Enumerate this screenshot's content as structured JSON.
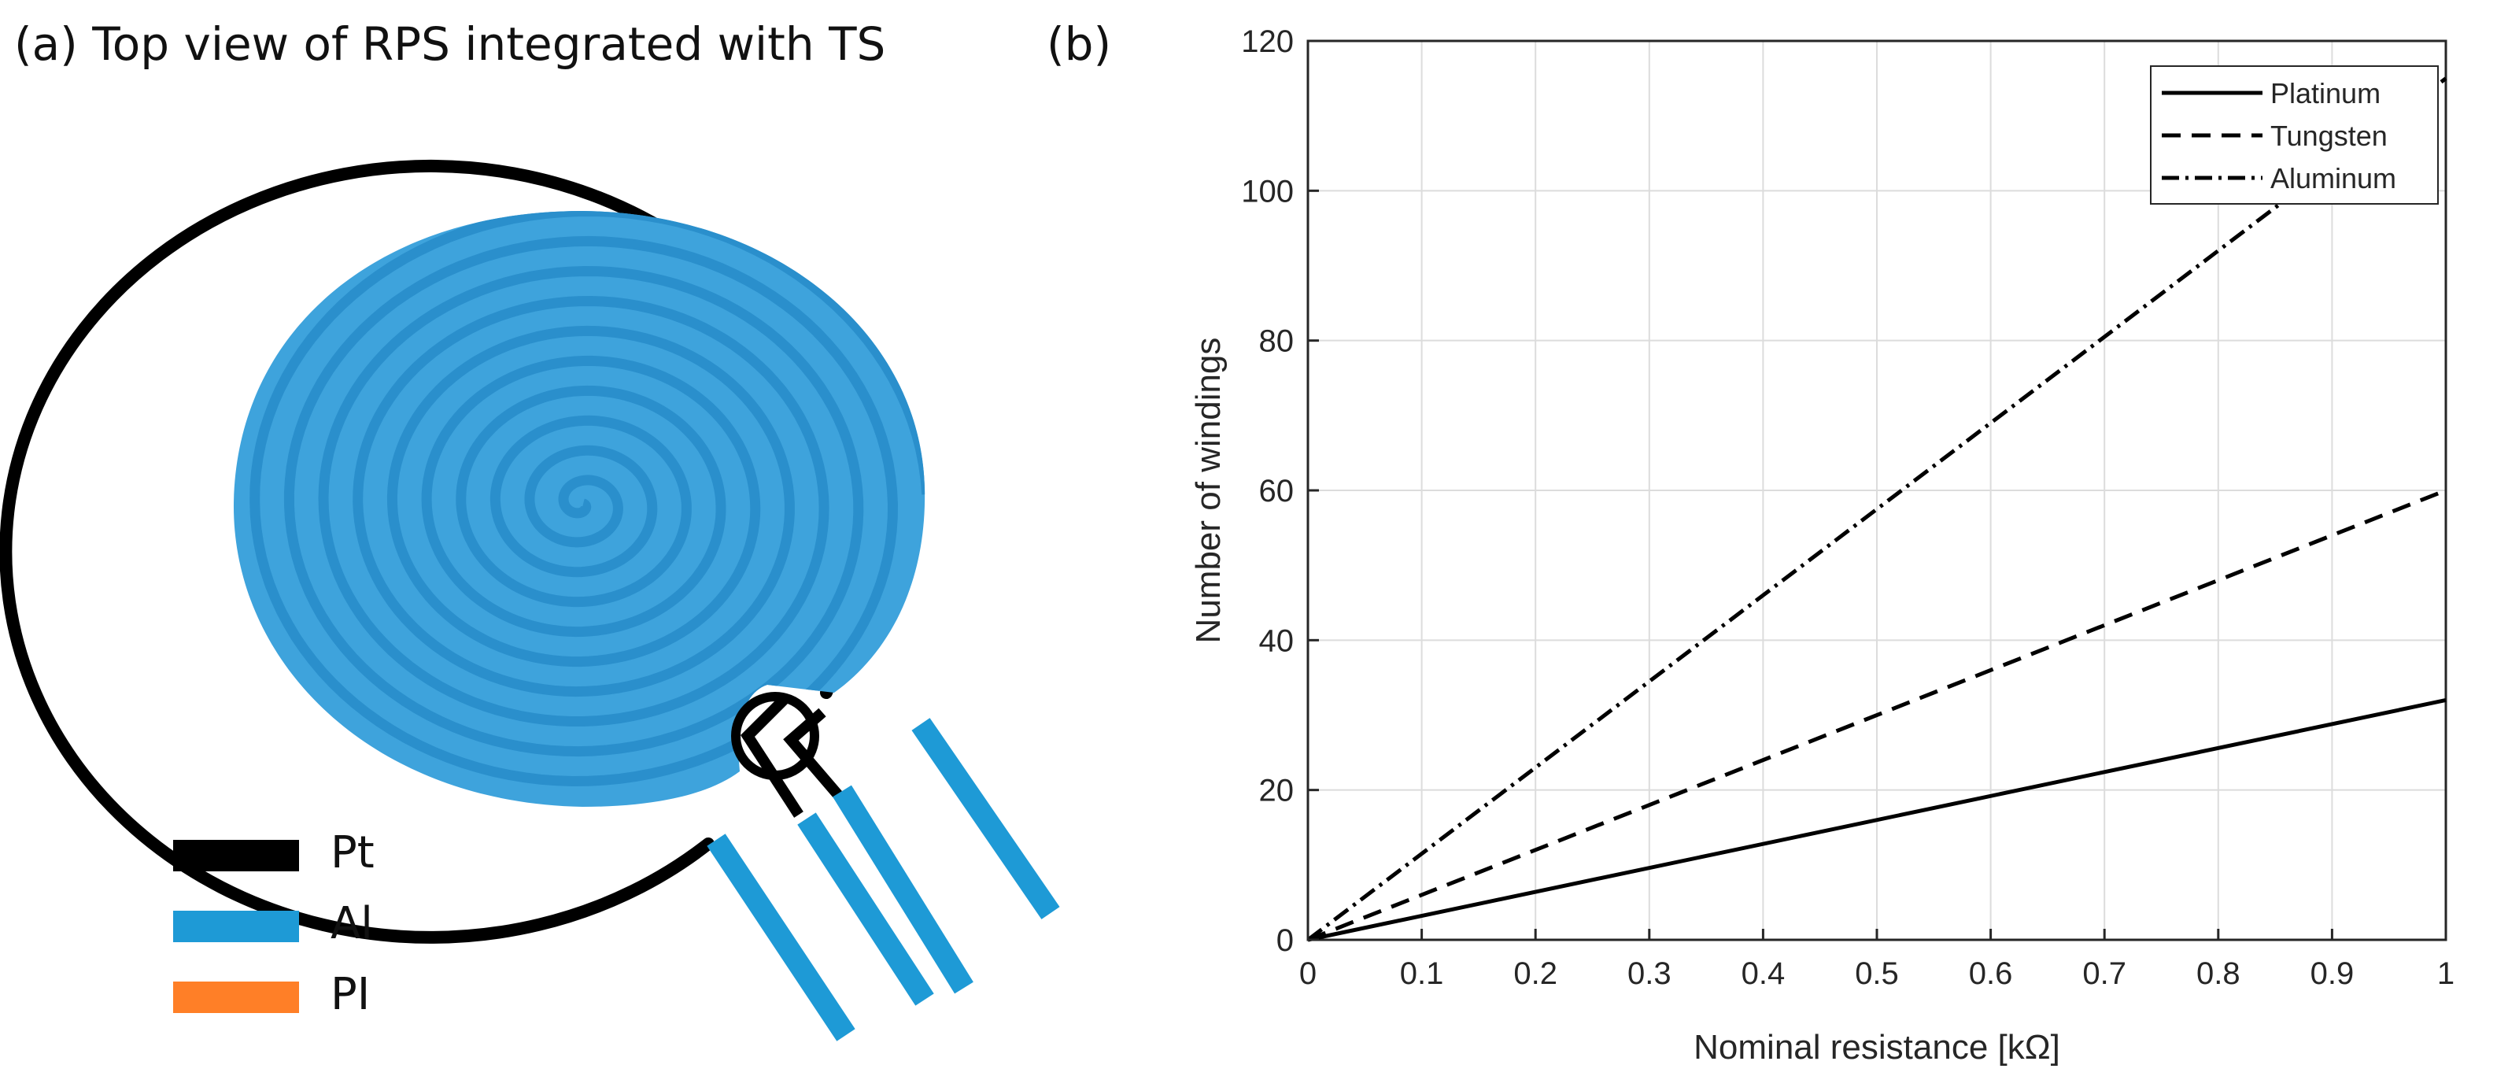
{
  "panel_a": {
    "title": "(a) Top view of RPS integrated with TS",
    "legend": [
      {
        "label": "Pt",
        "color": "#000000"
      },
      {
        "label": "Al",
        "color": "#1e9ad6"
      },
      {
        "label": "PI",
        "color": "#ff7f27"
      }
    ],
    "colors": {
      "spiral_fill": "#3ea3dc",
      "spiral_groove": "#2a8fcc",
      "outline": "#000000",
      "electrode": "#1e9ad6"
    }
  },
  "panel_b": {
    "label": "(b)"
  },
  "chart_data": {
    "type": "line",
    "xlabel": "Nominal resistance [kΩ]",
    "ylabel": "Number of windings",
    "xlim": [
      0,
      1
    ],
    "ylim": [
      0,
      120
    ],
    "xticks": [
      "0",
      "0.1",
      "0.2",
      "0.3",
      "0.4",
      "0.5",
      "0.6",
      "0.7",
      "0.8",
      "0.9",
      "1"
    ],
    "yticks": [
      "0",
      "20",
      "40",
      "60",
      "80",
      "100",
      "120"
    ],
    "grid": true,
    "legend_position": "top-right",
    "x": [
      0,
      1
    ],
    "series": [
      {
        "name": "Platinum",
        "style": "solid",
        "values": [
          0,
          32
        ]
      },
      {
        "name": "Tungsten",
        "style": "dashed",
        "values": [
          0,
          60
        ]
      },
      {
        "name": "Aluminum",
        "style": "dash-dot",
        "values": [
          0,
          115
        ]
      }
    ]
  }
}
